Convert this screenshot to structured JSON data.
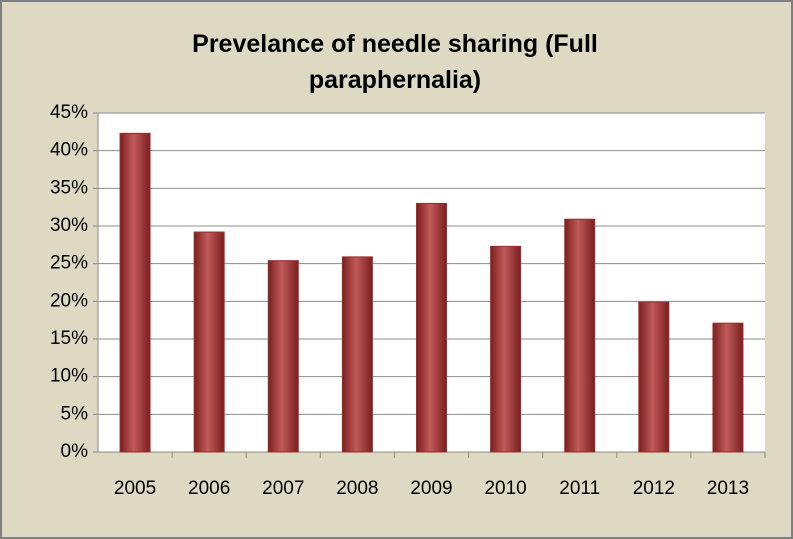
{
  "chart_data": {
    "type": "bar",
    "title": "Prevelance of needle sharing (Full paraphernalia)",
    "categories": [
      "2005",
      "2006",
      "2007",
      "2008",
      "2009",
      "2010",
      "2011",
      "2012",
      "2013"
    ],
    "values": [
      42.3,
      29.2,
      25.4,
      25.9,
      33.0,
      27.3,
      30.9,
      19.9,
      17.1
    ],
    "color": "#9b2d2d",
    "ylim": [
      0,
      45
    ],
    "yticks": [
      {
        "value": 0,
        "label": "0%"
      },
      {
        "value": 5,
        "label": "5%"
      },
      {
        "value": 10,
        "label": "10%"
      },
      {
        "value": 15,
        "label": "15%"
      },
      {
        "value": 20,
        "label": "20%"
      },
      {
        "value": 25,
        "label": "25%"
      },
      {
        "value": 30,
        "label": "30%"
      },
      {
        "value": 35,
        "label": "35%"
      },
      {
        "value": 40,
        "label": "40%"
      },
      {
        "value": 45,
        "label": "45%"
      }
    ],
    "grid": true
  }
}
